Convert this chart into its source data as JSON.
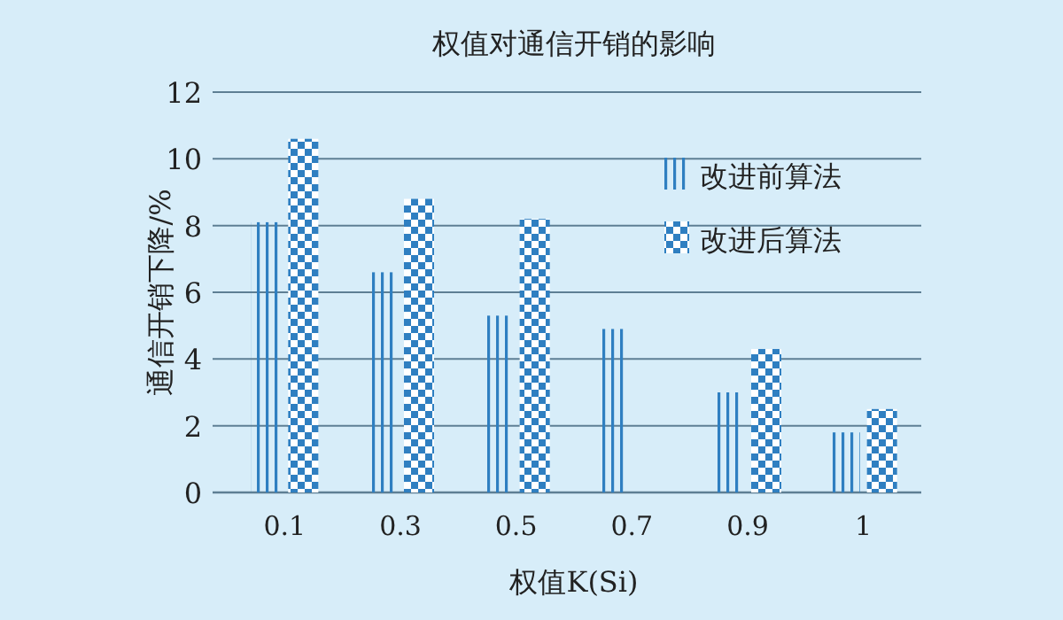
{
  "chart_data": {
    "type": "bar",
    "title": "权值对通信开销的影响",
    "xlabel": "权值K(Si)",
    "ylabel": "通信开销下降/%",
    "categories": [
      "0.1",
      "0.3",
      "0.5",
      "0.7",
      "0.9",
      "1"
    ],
    "series": [
      {
        "name": "改进前算法",
        "color": "#2f7fc1",
        "values": [
          8.1,
          6.6,
          5.3,
          4.9,
          3.0,
          1.8
        ]
      },
      {
        "name": "改进后算法",
        "color": "#2f7fc1",
        "values": [
          10.6,
          8.8,
          8.2,
          null,
          4.3,
          2.5
        ]
      }
    ],
    "ylim": [
      0,
      12
    ],
    "yticks": [
      0,
      2,
      4,
      6,
      8,
      10,
      12
    ],
    "grid": "y",
    "legend": "top right"
  }
}
